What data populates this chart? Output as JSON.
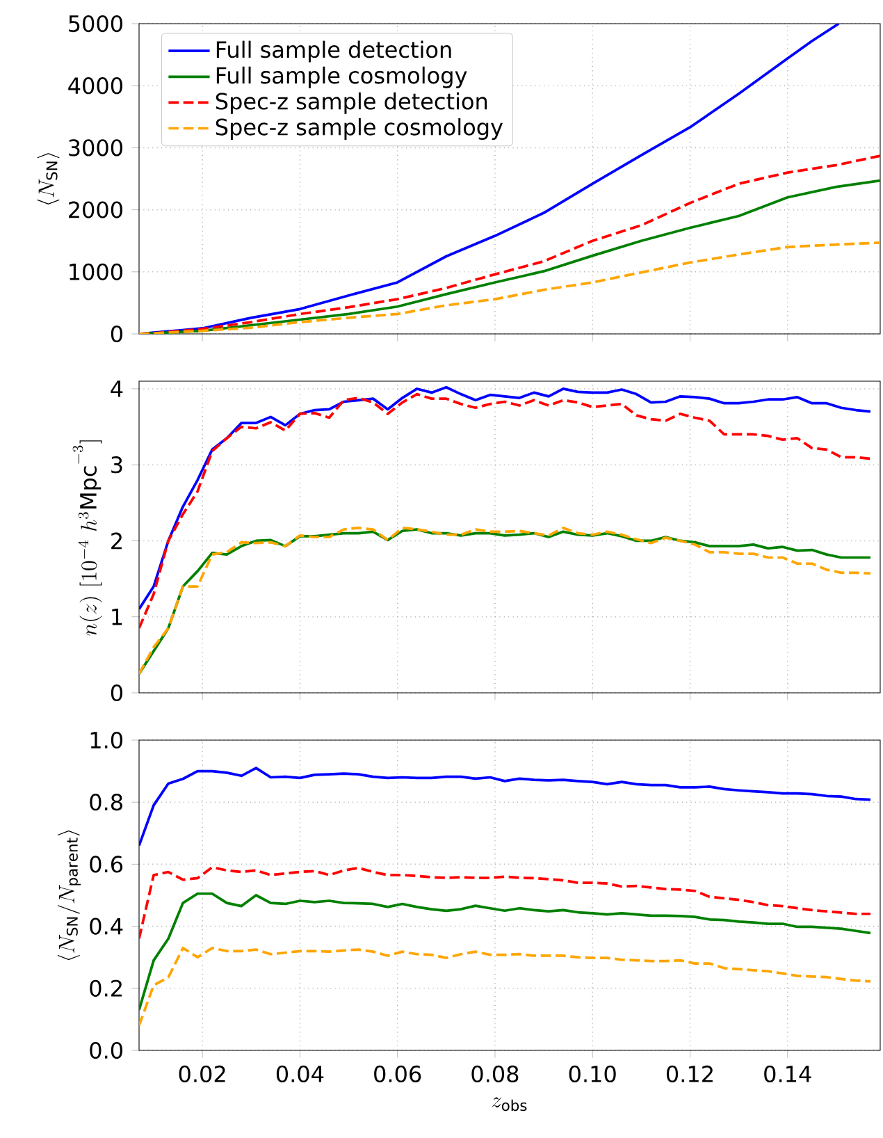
{
  "chart_data": [
    {
      "type": "line",
      "ylabel": "\\langle N_{\\rm SN}\\rangle",
      "xlim": [
        0.007,
        0.159
      ],
      "ylim": [
        0,
        5000
      ],
      "yticks": [
        0,
        1000,
        2000,
        3000,
        4000,
        5000
      ],
      "xticks": [
        {
          "value": 0.02,
          "label": null
        },
        {
          "value": 0.04,
          "label": null
        },
        {
          "value": 0.06,
          "label": null
        },
        {
          "value": 0.08,
          "label": null
        },
        {
          "value": 0.1,
          "label": null
        },
        {
          "value": 0.12,
          "label": null
        },
        {
          "value": 0.14,
          "label": null
        }
      ],
      "tick_labels": "y",
      "grid": true,
      "legend": "top left",
      "series": [
        {
          "name": "Full sample detection",
          "color": "#0000ff",
          "line_style": "solid",
          "x": [
            0.007,
            0.01,
            0.02,
            0.03,
            0.04,
            0.05,
            0.06,
            0.07,
            0.08,
            0.09,
            0.1,
            0.11,
            0.12,
            0.13,
            0.14,
            0.145,
            0.1505
          ],
          "values": [
            0,
            20,
            90,
            260,
            400,
            620,
            830,
            1250,
            1580,
            1950,
            2420,
            2880,
            3330,
            3870,
            4440,
            4720,
            5000
          ]
        },
        {
          "name": "Full sample cosmology",
          "color": "#008000",
          "line_style": "solid",
          "x": [
            0.007,
            0.01,
            0.02,
            0.03,
            0.04,
            0.05,
            0.06,
            0.07,
            0.08,
            0.09,
            0.1,
            0.11,
            0.12,
            0.13,
            0.14,
            0.15,
            0.159
          ],
          "values": [
            0,
            10,
            50,
            140,
            230,
            320,
            440,
            640,
            830,
            1010,
            1260,
            1500,
            1710,
            1900,
            2200,
            2370,
            2470
          ]
        },
        {
          "name": "Spec-z sample detection",
          "color": "#ff0000",
          "line_style": "dashed",
          "x": [
            0.007,
            0.01,
            0.02,
            0.03,
            0.04,
            0.05,
            0.06,
            0.07,
            0.08,
            0.09,
            0.1,
            0.11,
            0.12,
            0.13,
            0.14,
            0.15,
            0.159
          ],
          "values": [
            0,
            10,
            80,
            190,
            320,
            430,
            560,
            740,
            960,
            1170,
            1500,
            1750,
            2110,
            2420,
            2600,
            2720,
            2870
          ]
        },
        {
          "name": "Spec-z sample cosmology",
          "color": "#ffa500",
          "line_style": "dashed",
          "x": [
            0.007,
            0.01,
            0.02,
            0.03,
            0.04,
            0.05,
            0.06,
            0.07,
            0.08,
            0.09,
            0.1,
            0.11,
            0.12,
            0.13,
            0.14,
            0.15,
            0.159
          ],
          "values": [
            0,
            10,
            50,
            100,
            190,
            260,
            320,
            460,
            560,
            710,
            830,
            990,
            1150,
            1280,
            1400,
            1440,
            1470
          ]
        }
      ]
    },
    {
      "type": "line",
      "ylabel": "n(z)\\ [10^{-4}\\ h^3{\\rm Mpc}^{-3}]",
      "xlim": [
        0.007,
        0.159
      ],
      "ylim": [
        0,
        4.1
      ],
      "yticks": [
        0,
        1,
        2,
        3,
        4
      ],
      "xticks": [
        {
          "value": 0.02,
          "label": null
        },
        {
          "value": 0.04,
          "label": null
        },
        {
          "value": 0.06,
          "label": null
        },
        {
          "value": 0.08,
          "label": null
        },
        {
          "value": 0.1,
          "label": null
        },
        {
          "value": 0.12,
          "label": null
        },
        {
          "value": 0.14,
          "label": null
        }
      ],
      "tick_labels": "y",
      "grid": true,
      "x": [
        0.007,
        0.01,
        0.013,
        0.016,
        0.019,
        0.022,
        0.025,
        0.028,
        0.031,
        0.034,
        0.037,
        0.04,
        0.043,
        0.046,
        0.049,
        0.052,
        0.055,
        0.058,
        0.061,
        0.064,
        0.067,
        0.07,
        0.073,
        0.076,
        0.079,
        0.082,
        0.085,
        0.088,
        0.091,
        0.094,
        0.097,
        0.1,
        0.103,
        0.106,
        0.109,
        0.112,
        0.115,
        0.118,
        0.121,
        0.124,
        0.127,
        0.13,
        0.133,
        0.136,
        0.139,
        0.142,
        0.145,
        0.148,
        0.151,
        0.154,
        0.157
      ],
      "series": [
        {
          "color": "#0000ff",
          "line_style": "solid",
          "values": [
            1.1,
            1.4,
            2.0,
            2.45,
            2.8,
            3.2,
            3.35,
            3.55,
            3.55,
            3.63,
            3.52,
            3.67,
            3.72,
            3.73,
            3.83,
            3.85,
            3.87,
            3.73,
            3.88,
            4.0,
            3.95,
            4.02,
            3.93,
            3.85,
            3.92,
            3.9,
            3.88,
            3.95,
            3.9,
            4.0,
            3.96,
            3.95,
            3.95,
            3.99,
            3.93,
            3.82,
            3.83,
            3.9,
            3.89,
            3.87,
            3.81,
            3.81,
            3.83,
            3.86,
            3.86,
            3.89,
            3.81,
            3.81,
            3.75,
            3.72,
            3.7
          ]
        },
        {
          "color": "#008000",
          "line_style": "solid",
          "values": [
            0.25,
            0.55,
            0.85,
            1.4,
            1.6,
            1.84,
            1.82,
            1.93,
            2.0,
            2.01,
            1.93,
            2.06,
            2.06,
            2.08,
            2.1,
            2.1,
            2.12,
            2.01,
            2.13,
            2.15,
            2.1,
            2.1,
            2.07,
            2.1,
            2.1,
            2.07,
            2.08,
            2.1,
            2.05,
            2.12,
            2.08,
            2.07,
            2.1,
            2.06,
            2.0,
            2.0,
            2.05,
            2.0,
            1.98,
            1.93,
            1.93,
            1.93,
            1.95,
            1.9,
            1.92,
            1.87,
            1.88,
            1.82,
            1.78,
            1.78,
            1.78
          ]
        },
        {
          "color": "#ff0000",
          "line_style": "dashed",
          "values": [
            0.85,
            1.3,
            2.0,
            2.35,
            2.65,
            3.18,
            3.35,
            3.5,
            3.48,
            3.56,
            3.45,
            3.67,
            3.68,
            3.62,
            3.85,
            3.88,
            3.82,
            3.67,
            3.82,
            3.93,
            3.87,
            3.87,
            3.8,
            3.75,
            3.8,
            3.83,
            3.78,
            3.85,
            3.78,
            3.85,
            3.82,
            3.76,
            3.78,
            3.8,
            3.65,
            3.6,
            3.58,
            3.67,
            3.62,
            3.58,
            3.4,
            3.4,
            3.4,
            3.38,
            3.33,
            3.35,
            3.22,
            3.2,
            3.1,
            3.1,
            3.08
          ]
        },
        {
          "color": "#ffa500",
          "line_style": "dashed",
          "values": [
            0.25,
            0.6,
            0.85,
            1.4,
            1.4,
            1.82,
            1.85,
            1.98,
            1.97,
            1.98,
            1.93,
            2.07,
            2.05,
            2.05,
            2.15,
            2.17,
            2.15,
            2.01,
            2.17,
            2.15,
            2.12,
            2.08,
            2.08,
            2.15,
            2.12,
            2.12,
            2.13,
            2.1,
            2.07,
            2.17,
            2.1,
            2.08,
            2.12,
            2.08,
            2.02,
            1.97,
            2.04,
            2.0,
            1.95,
            1.85,
            1.85,
            1.83,
            1.83,
            1.78,
            1.78,
            1.7,
            1.7,
            1.62,
            1.58,
            1.58,
            1.57
          ]
        }
      ]
    },
    {
      "type": "line",
      "xlabel": "z_{\\rm obs}",
      "ylabel": "\\langle N_{\\rm SN}/N_{\\rm parent}\\rangle",
      "xlim": [
        0.007,
        0.159
      ],
      "ylim": [
        0,
        1
      ],
      "yticks": [
        {
          "value": 0,
          "label": "0.0"
        },
        0.2,
        0.4,
        0.6,
        0.8,
        {
          "value": 1,
          "label": "1.0"
        }
      ],
      "xticks": [
        0.02,
        0.04,
        0.06,
        0.08,
        {
          "value": 0.1,
          "label": "0.10"
        },
        0.12,
        0.14
      ],
      "grid": true,
      "x": [
        0.007,
        0.01,
        0.013,
        0.016,
        0.019,
        0.022,
        0.025,
        0.028,
        0.031,
        0.034,
        0.037,
        0.04,
        0.043,
        0.046,
        0.049,
        0.052,
        0.055,
        0.058,
        0.061,
        0.064,
        0.067,
        0.07,
        0.073,
        0.076,
        0.079,
        0.082,
        0.085,
        0.088,
        0.091,
        0.094,
        0.097,
        0.1,
        0.103,
        0.106,
        0.109,
        0.112,
        0.115,
        0.118,
        0.121,
        0.124,
        0.127,
        0.13,
        0.133,
        0.136,
        0.139,
        0.142,
        0.145,
        0.148,
        0.151,
        0.154,
        0.157
      ],
      "series": [
        {
          "color": "#0000ff",
          "line_style": "solid",
          "values": [
            0.66,
            0.79,
            0.86,
            0.875,
            0.9,
            0.9,
            0.895,
            0.885,
            0.91,
            0.88,
            0.882,
            0.878,
            0.888,
            0.89,
            0.892,
            0.89,
            0.882,
            0.878,
            0.88,
            0.878,
            0.878,
            0.882,
            0.882,
            0.876,
            0.88,
            0.868,
            0.876,
            0.872,
            0.87,
            0.872,
            0.868,
            0.865,
            0.858,
            0.865,
            0.858,
            0.855,
            0.855,
            0.848,
            0.848,
            0.85,
            0.842,
            0.838,
            0.835,
            0.832,
            0.828,
            0.828,
            0.826,
            0.82,
            0.818,
            0.81,
            0.808
          ]
        },
        {
          "color": "#008000",
          "line_style": "solid",
          "values": [
            0.13,
            0.29,
            0.36,
            0.475,
            0.505,
            0.505,
            0.475,
            0.465,
            0.5,
            0.475,
            0.472,
            0.482,
            0.478,
            0.482,
            0.475,
            0.474,
            0.472,
            0.462,
            0.472,
            0.462,
            0.455,
            0.45,
            0.455,
            0.466,
            0.458,
            0.45,
            0.458,
            0.452,
            0.448,
            0.452,
            0.445,
            0.442,
            0.438,
            0.442,
            0.438,
            0.434,
            0.434,
            0.433,
            0.43,
            0.422,
            0.42,
            0.415,
            0.412,
            0.408,
            0.408,
            0.398,
            0.398,
            0.395,
            0.392,
            0.385,
            0.378
          ]
        },
        {
          "color": "#ff0000",
          "line_style": "dashed",
          "values": [
            0.36,
            0.565,
            0.575,
            0.55,
            0.555,
            0.59,
            0.58,
            0.575,
            0.58,
            0.565,
            0.57,
            0.575,
            0.578,
            0.565,
            0.58,
            0.588,
            0.575,
            0.565,
            0.565,
            0.562,
            0.558,
            0.556,
            0.558,
            0.556,
            0.556,
            0.56,
            0.556,
            0.555,
            0.552,
            0.548,
            0.54,
            0.54,
            0.538,
            0.528,
            0.53,
            0.525,
            0.52,
            0.518,
            0.514,
            0.495,
            0.49,
            0.485,
            0.478,
            0.468,
            0.465,
            0.458,
            0.452,
            0.448,
            0.444,
            0.44,
            0.44
          ]
        },
        {
          "color": "#ffa500",
          "line_style": "dashed",
          "values": [
            0.08,
            0.21,
            0.235,
            0.33,
            0.3,
            0.33,
            0.32,
            0.32,
            0.325,
            0.31,
            0.315,
            0.32,
            0.32,
            0.318,
            0.322,
            0.325,
            0.318,
            0.305,
            0.318,
            0.31,
            0.308,
            0.298,
            0.31,
            0.318,
            0.308,
            0.308,
            0.31,
            0.305,
            0.305,
            0.305,
            0.3,
            0.298,
            0.298,
            0.292,
            0.29,
            0.288,
            0.288,
            0.29,
            0.28,
            0.28,
            0.265,
            0.262,
            0.258,
            0.255,
            0.248,
            0.24,
            0.238,
            0.236,
            0.23,
            0.225,
            0.222
          ]
        }
      ]
    }
  ]
}
